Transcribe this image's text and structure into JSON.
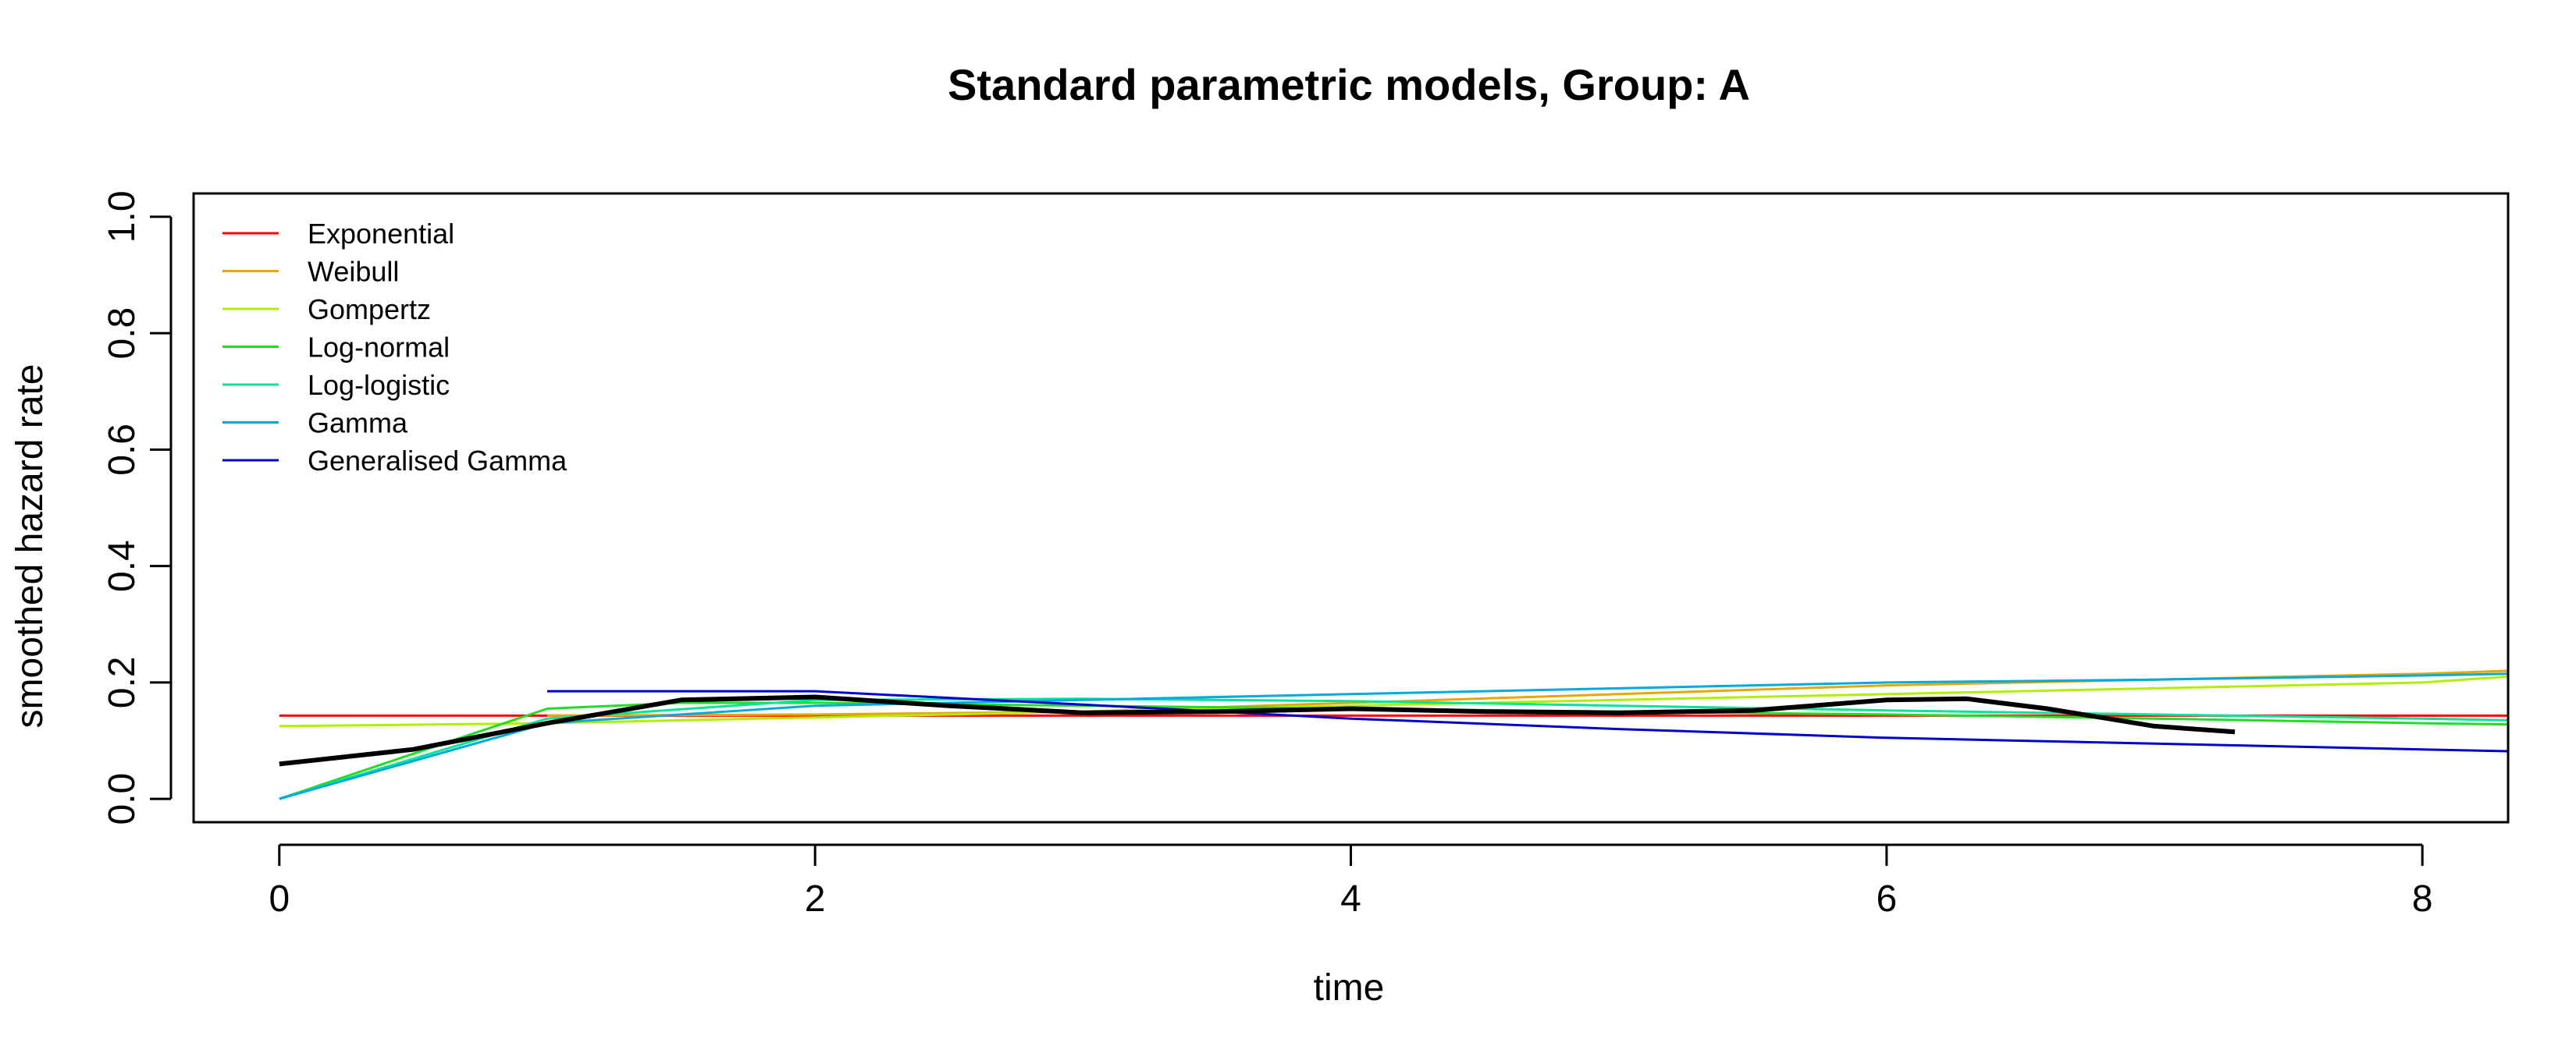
{
  "chart_data": {
    "type": "line",
    "title": "Standard parametric models, Group: A",
    "xlabel": "time",
    "ylabel": "smoothed hazard rate",
    "xlim": [
      -0.32,
      8.32
    ],
    "ylim": [
      -0.04,
      1.04
    ],
    "x_ticks": [
      0,
      2,
      4,
      6,
      8
    ],
    "y_ticks": [
      0.0,
      0.2,
      0.4,
      0.6,
      0.8,
      1.0
    ],
    "x_tick_labels": [
      "0",
      "2",
      "4",
      "6",
      "8"
    ],
    "y_tick_labels": [
      "0.0",
      "0.2",
      "0.4",
      "0.6",
      "0.8",
      "1.0"
    ],
    "grid": false,
    "legend_position": "top-left",
    "series": [
      {
        "name": "Exponential",
        "color": "#FF0000",
        "width": 3,
        "x": [
          0,
          8.32
        ],
        "y": [
          0.143,
          0.143
        ]
      },
      {
        "name": "Weibull",
        "color": "#E6A800",
        "width": 3,
        "x": [
          1,
          2,
          3,
          4,
          5,
          6,
          7,
          8,
          8.32
        ],
        "y": [
          0.143,
          0.145,
          0.15,
          0.165,
          0.18,
          0.195,
          0.205,
          0.215,
          0.22
        ]
      },
      {
        "name": "Gompertz",
        "color": "#B2EE00",
        "width": 3,
        "x": [
          0,
          1,
          2,
          3,
          4,
          5,
          6,
          7,
          8,
          8.32
        ],
        "y": [
          0.125,
          0.13,
          0.14,
          0.15,
          0.16,
          0.17,
          0.18,
          0.19,
          0.2,
          0.21
        ]
      },
      {
        "name": "Log-normal",
        "color": "#22DD22",
        "width": 3,
        "x": [
          0,
          1,
          1.5,
          2,
          3,
          4,
          5,
          6,
          7,
          8,
          8.32
        ],
        "y": [
          0.0,
          0.155,
          0.165,
          0.165,
          0.16,
          0.155,
          0.15,
          0.145,
          0.138,
          0.13,
          0.128
        ]
      },
      {
        "name": "Log-logistic",
        "color": "#00E59A",
        "width": 3,
        "x": [
          0,
          1,
          2,
          3,
          4,
          5,
          6,
          7,
          8,
          8.32
        ],
        "y": [
          0.0,
          0.138,
          0.17,
          0.172,
          0.168,
          0.16,
          0.152,
          0.145,
          0.138,
          0.135
        ]
      },
      {
        "name": "Gamma",
        "color": "#00AADD",
        "width": 3,
        "x": [
          0,
          1,
          2,
          3,
          4,
          5,
          6,
          7,
          8,
          8.32
        ],
        "y": [
          0.0,
          0.13,
          0.16,
          0.17,
          0.18,
          0.19,
          0.2,
          0.205,
          0.212,
          0.215
        ]
      },
      {
        "name": "Generalised Gamma",
        "color": "#0000CC",
        "width": 3,
        "x": [
          1,
          2,
          3,
          4,
          5,
          6,
          7,
          8,
          8.32
        ],
        "y": [
          0.185,
          0.185,
          0.162,
          0.138,
          0.12,
          0.105,
          0.095,
          0.085,
          0.082
        ]
      },
      {
        "name": "",
        "color": "#000000",
        "width": 6,
        "x": [
          0,
          0.5,
          1,
          1.5,
          2,
          2.5,
          3,
          3.5,
          4,
          4.5,
          5,
          5.5,
          6,
          6.3,
          6.6,
          7,
          7.3
        ],
        "y": [
          0.06,
          0.085,
          0.13,
          0.17,
          0.175,
          0.16,
          0.148,
          0.15,
          0.155,
          0.15,
          0.148,
          0.152,
          0.17,
          0.172,
          0.155,
          0.125,
          0.115
        ]
      }
    ]
  }
}
